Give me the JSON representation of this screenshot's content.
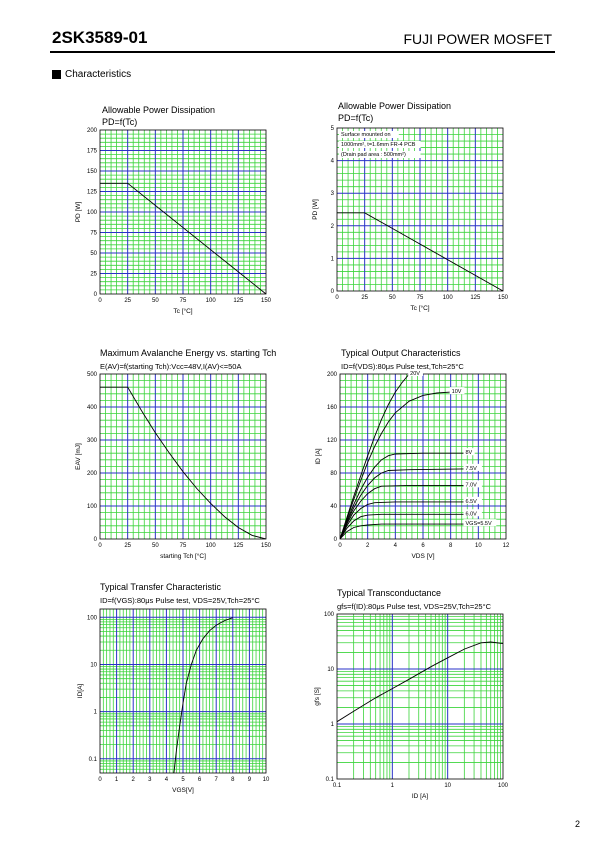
{
  "header": {
    "part": "2SK3589-01",
    "product": "FUJI POWER MOSFET",
    "section": "Characteristics",
    "page": "2"
  },
  "colors": {
    "minor_grid": "#3bd43b",
    "major_grid": "#2a32c8",
    "curve": "#000000",
    "plot_bg": "#ffffff"
  },
  "chart_data": [
    {
      "type": "line",
      "title": "Allowable Power Dissipation",
      "subtitle": "PD=f(Tc)",
      "xlabel": "Tc [°C]",
      "ylabel": "PD [W]",
      "xlim": [
        0,
        150
      ],
      "ylim": [
        0,
        200
      ],
      "x_scale": "linear",
      "y_scale": "linear",
      "x_ticks": [
        0,
        25,
        50,
        75,
        100,
        125,
        150
      ],
      "y_ticks": [
        0,
        25,
        50,
        75,
        100,
        125,
        150,
        175,
        200
      ],
      "x_ticks_text": [
        "0",
        "25",
        "50",
        "75",
        "100",
        "125",
        "150"
      ],
      "y_ticks_text": [
        "0",
        "25",
        "50",
        "75",
        "100",
        "125",
        "150",
        "175",
        "200"
      ],
      "grid": true,
      "notes": [],
      "series": [
        {
          "name": "",
          "x": [
            0,
            25,
            150
          ],
          "y": [
            135,
            135,
            0
          ]
        }
      ]
    },
    {
      "type": "line",
      "title": "Allowable Power Dissipation",
      "subtitle": "PD=f(Tc)",
      "xlabel": "Tc [°C]",
      "ylabel": "PD [W]",
      "xlim": [
        0,
        150
      ],
      "ylim": [
        0,
        5
      ],
      "x_scale": "linear",
      "y_scale": "linear",
      "x_ticks": [
        0,
        25,
        50,
        75,
        100,
        125,
        150
      ],
      "y_ticks": [
        0,
        1,
        2,
        3,
        4,
        5
      ],
      "x_ticks_text": [
        "0",
        "25",
        "50",
        "75",
        "100",
        "125",
        "150"
      ],
      "y_ticks_text": [
        "0",
        "1",
        "2",
        "3",
        "4",
        "5"
      ],
      "grid": true,
      "notes": [
        "Surface mounted on",
        "1000mm², t=1.6mm FR-4 PCB",
        "(Drain pad area : 500mm²)"
      ],
      "series": [
        {
          "name": "",
          "x": [
            0,
            25,
            150
          ],
          "y": [
            2.4,
            2.4,
            0
          ]
        }
      ]
    },
    {
      "type": "line",
      "title": "Maximum Avalanche Energy vs. starting Tch",
      "subtitle": "E(AV)=f(starting Tch):Vcc=48V,I(AV)<=50A",
      "xlabel": "starting Tch [°C]",
      "ylabel": "EAV [mJ]",
      "xlim": [
        0,
        150
      ],
      "ylim": [
        0,
        500
      ],
      "x_scale": "linear",
      "y_scale": "linear",
      "x_ticks": [
        0,
        25,
        50,
        75,
        100,
        125,
        150
      ],
      "y_ticks": [
        0,
        100,
        200,
        300,
        400,
        500
      ],
      "x_ticks_text": [
        "0",
        "25",
        "50",
        "75",
        "100",
        "125",
        "150"
      ],
      "y_ticks_text": [
        "0",
        "100",
        "200",
        "300",
        "400",
        "500"
      ],
      "grid": true,
      "notes": [],
      "series": [
        {
          "name": "",
          "x": [
            0,
            25,
            37.5,
            50,
            62.5,
            75,
            87.5,
            100,
            112.5,
            125,
            137.5,
            150
          ],
          "y": [
            460,
            460,
            389,
            322,
            261,
            204,
            153,
            108,
            68,
            35,
            11,
            0
          ]
        }
      ]
    },
    {
      "type": "line",
      "title": "Typical Output Characteristics",
      "subtitle": "ID=f(VDS):80μs Pulse test,Tch=25°C",
      "xlabel": "VDS [V]",
      "ylabel": "ID [A]",
      "xlim": [
        0,
        12
      ],
      "ylim": [
        0,
        200
      ],
      "x_scale": "linear",
      "y_scale": "linear",
      "x_ticks": [
        0,
        2,
        4,
        6,
        8,
        10,
        12
      ],
      "y_ticks": [
        0,
        40,
        80,
        120,
        160,
        200
      ],
      "x_ticks_text": [
        "0",
        "2",
        "4",
        "6",
        "8",
        "10",
        "12"
      ],
      "y_ticks_text": [
        "0",
        "40",
        "80",
        "120",
        "160",
        "200"
      ],
      "grid": true,
      "notes": [],
      "series": [
        {
          "name": "20V",
          "x": [
            0,
            0.5,
            1,
            1.5,
            2,
            2.5,
            3,
            3.5,
            4,
            4.5,
            5
          ],
          "y": [
            0,
            26,
            52,
            77,
            101,
            124,
            145,
            163,
            178,
            190,
            200
          ]
        },
        {
          "name": "10V",
          "x": [
            0,
            0.5,
            1,
            1.5,
            2,
            2.5,
            3,
            3.5,
            4,
            5,
            6,
            7,
            8
          ],
          "y": [
            0,
            24,
            48,
            71,
            93,
            112,
            128,
            142,
            153,
            167,
            174,
            177,
            178
          ]
        },
        {
          "name": "8V",
          "x": [
            0,
            0.5,
            1,
            1.5,
            2,
            2.5,
            3,
            3.5,
            4,
            6,
            9
          ],
          "y": [
            0,
            22,
            42,
            60,
            75,
            87,
            96,
            101,
            103,
            104,
            104
          ]
        },
        {
          "name": "7.5V",
          "x": [
            0,
            0.5,
            1,
            1.5,
            2,
            2.5,
            3,
            3.5,
            5,
            9
          ],
          "y": [
            0,
            20,
            38,
            53,
            65,
            74,
            80,
            83,
            84,
            85
          ]
        },
        {
          "name": "7.0V",
          "x": [
            0,
            0.5,
            1,
            1.5,
            2,
            2.5,
            3,
            5,
            9
          ],
          "y": [
            0,
            18,
            34,
            46,
            55,
            61,
            64,
            65,
            65
          ]
        },
        {
          "name": "6.5V",
          "x": [
            0,
            0.5,
            1,
            1.5,
            2,
            2.5,
            4,
            9
          ],
          "y": [
            0,
            16,
            29,
            37,
            42,
            44,
            45,
            45
          ]
        },
        {
          "name": "6.0V",
          "x": [
            0,
            0.5,
            1,
            1.5,
            2,
            3,
            9
          ],
          "y": [
            0,
            13,
            22,
            27,
            29,
            30,
            30
          ]
        },
        {
          "name": "VGS=5.5V",
          "x": [
            0,
            0.5,
            1,
            1.5,
            2,
            3,
            9
          ],
          "y": [
            0,
            9,
            14,
            16,
            17,
            18,
            18
          ]
        }
      ]
    },
    {
      "type": "line",
      "title": "Typical Transfer Characteristic",
      "subtitle": "ID=f(VGS):80μs Pulse test, VDS=25V,Tch=25°C",
      "xlabel": "VGS[V]",
      "ylabel": "ID[A]",
      "xlim": [
        0,
        10
      ],
      "ylim": [
        0.05,
        150
      ],
      "x_scale": "linear",
      "y_scale": "log",
      "x_ticks": [
        0,
        1,
        2,
        3,
        4,
        5,
        6,
        7,
        8,
        9,
        10
      ],
      "y_ticks": [
        0.1,
        1,
        10,
        100
      ],
      "x_ticks_text": [
        "0",
        "1",
        "2",
        "3",
        "4",
        "5",
        "6",
        "7",
        "8",
        "9",
        "10"
      ],
      "y_ticks_text": [
        "0.1",
        "1",
        "10",
        "100"
      ],
      "grid": true,
      "notes": [],
      "series": [
        {
          "name": "",
          "x": [
            4.45,
            4.6,
            4.8,
            5.0,
            5.2,
            5.5,
            5.8,
            6.2,
            6.6,
            7.0,
            7.5,
            8.0
          ],
          "y": [
            0.05,
            0.15,
            0.5,
            1.5,
            4,
            10,
            20,
            35,
            52,
            68,
            85,
            98
          ]
        }
      ]
    },
    {
      "type": "line",
      "title": "Typical Transconductance",
      "subtitle": "gfs=f(ID):80μs Pulse test, VDS=25V,Tch=25°C",
      "xlabel": "ID [A]",
      "ylabel": "gfs [S]",
      "xlim": [
        0.1,
        100
      ],
      "ylim": [
        0.1,
        100
      ],
      "x_scale": "log",
      "y_scale": "log",
      "x_ticks": [
        0.1,
        1,
        10,
        100
      ],
      "y_ticks": [
        0.1,
        1,
        10,
        100
      ],
      "x_ticks_text": [
        "0.1",
        "1",
        "10",
        "100"
      ],
      "y_ticks_text": [
        "0.1",
        "1",
        "10",
        "100"
      ],
      "grid": true,
      "notes": [],
      "series": [
        {
          "name": "",
          "x": [
            0.1,
            0.2,
            0.5,
            1,
            2,
            5,
            10,
            20,
            40,
            60,
            100
          ],
          "y": [
            1.1,
            1.7,
            3.0,
            4.4,
            6.5,
            11,
            16,
            23,
            30,
            31,
            29
          ]
        }
      ]
    }
  ]
}
